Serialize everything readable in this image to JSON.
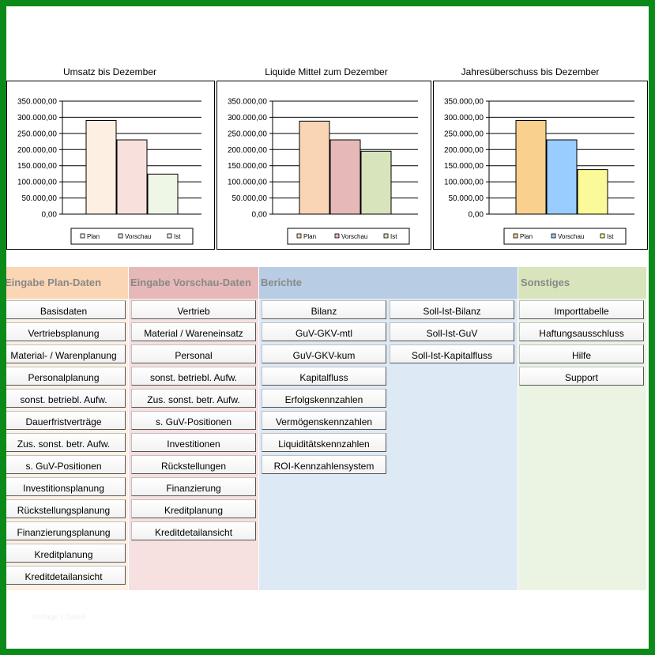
{
  "colors": {
    "frame": "#0b8a1a",
    "plan_col": "#fbd6b5",
    "vorschau_col": "#f6e0e0",
    "berichte_col": "#dde9f5",
    "sonstiges_col": "#ebf3e3"
  },
  "chart_data": [
    {
      "type": "bar",
      "title": "Umsatz bis Dezember",
      "categories": [
        "Plan",
        "Vorschau",
        "Ist"
      ],
      "values": [
        290000,
        230000,
        124000
      ],
      "colors": [
        "#fdefe2",
        "#f8e0dd",
        "#eef6e6"
      ],
      "legend": [
        "Plan",
        "Vorschau",
        "Ist"
      ],
      "legend_position": "bottom-right",
      "yticks": [
        "350.000,00",
        "300.000,00",
        "250.000,00",
        "200.000,00",
        "150.000,00",
        "100.000,00",
        "50.000,00",
        "0,00"
      ],
      "ylim": [
        0,
        350000
      ],
      "grid": true
    },
    {
      "type": "bar",
      "title": "Liquide Mittel zum Dezember",
      "categories": [
        "Plan",
        "Vorschau",
        "Ist"
      ],
      "values": [
        288000,
        230000,
        195000
      ],
      "colors": [
        "#f9d5b5",
        "#e6b9b8",
        "#d7e4bc"
      ],
      "legend": [
        "Plan",
        "Vorschau",
        "Ist"
      ],
      "legend_position": "bottom-right",
      "yticks": [
        "350.000,00",
        "300.000,00",
        "250.000,00",
        "200.000,00",
        "150.000,00",
        "100.000,00",
        "50.000,00",
        "0,00"
      ],
      "ylim": [
        0,
        350000
      ],
      "grid": true
    },
    {
      "type": "bar",
      "title": "Jahresüberschuss bis Dezember",
      "categories": [
        "Plan",
        "Vorschau",
        "Ist"
      ],
      "values": [
        290000,
        230000,
        138000
      ],
      "colors": [
        "#fad08e",
        "#99ccff",
        "#fafa99"
      ],
      "legend": [
        "Plan",
        "Vorschau",
        "Ist"
      ],
      "legend_position": "bottom-right",
      "yticks": [
        "350.000,00",
        "300.000,00",
        "250.000,00",
        "200.000,00",
        "150.000,00",
        "100.000,00",
        "50.000,00",
        "0,00"
      ],
      "ylim": [
        0,
        350000
      ],
      "grid": true
    }
  ],
  "sections": {
    "plan": {
      "title": "Eingabe Plan-Daten",
      "buttons": [
        "Basisdaten",
        "Vertriebsplanung",
        "Material- / Warenplanung",
        "Personalplanung",
        "sonst. betriebl. Aufw.",
        "Dauerfristverträge",
        "Zus. sonst. betr. Aufw.",
        "s. GuV-Positionen",
        "Investitionsplanung",
        "Rückstellungsplanung",
        "Finanzierungsplanung",
        "Kreditplanung",
        "Kreditdetailansicht"
      ]
    },
    "vorschau": {
      "title": "Eingabe Vorschau-Daten",
      "buttons": [
        "Vertrieb",
        "Material / Wareneinsatz",
        "Personal",
        "sonst. betriebl. Aufw.",
        "Zus. sonst. betr. Aufw.",
        "s. GuV-Positionen",
        "Investitionen",
        "Rückstellungen",
        "Finanzierung",
        "Kreditplanung",
        "Kreditdetailansicht"
      ]
    },
    "berichte": {
      "title": "Berichte",
      "buttons_left": [
        "Bilanz",
        "GuV-GKV-mtl",
        "GuV-GKV-kum",
        "Kapitalfluss",
        "Erfolgskennzahlen",
        "Vermögenskennzahlen",
        "Liquiditätskennzahlen",
        "ROI-Kennzahlensystem"
      ],
      "buttons_right": [
        "Soll-Ist-Bilanz",
        "Soll-Ist-GuV",
        "Soll-Ist-Kapitalfluss"
      ]
    },
    "sonstiges": {
      "title": "Sonstiges",
      "buttons": [
        "Importtabelle",
        "Haftungsausschluss",
        "Hilfe",
        "Support"
      ]
    }
  },
  "watermark": "Vorlage | Dateil"
}
